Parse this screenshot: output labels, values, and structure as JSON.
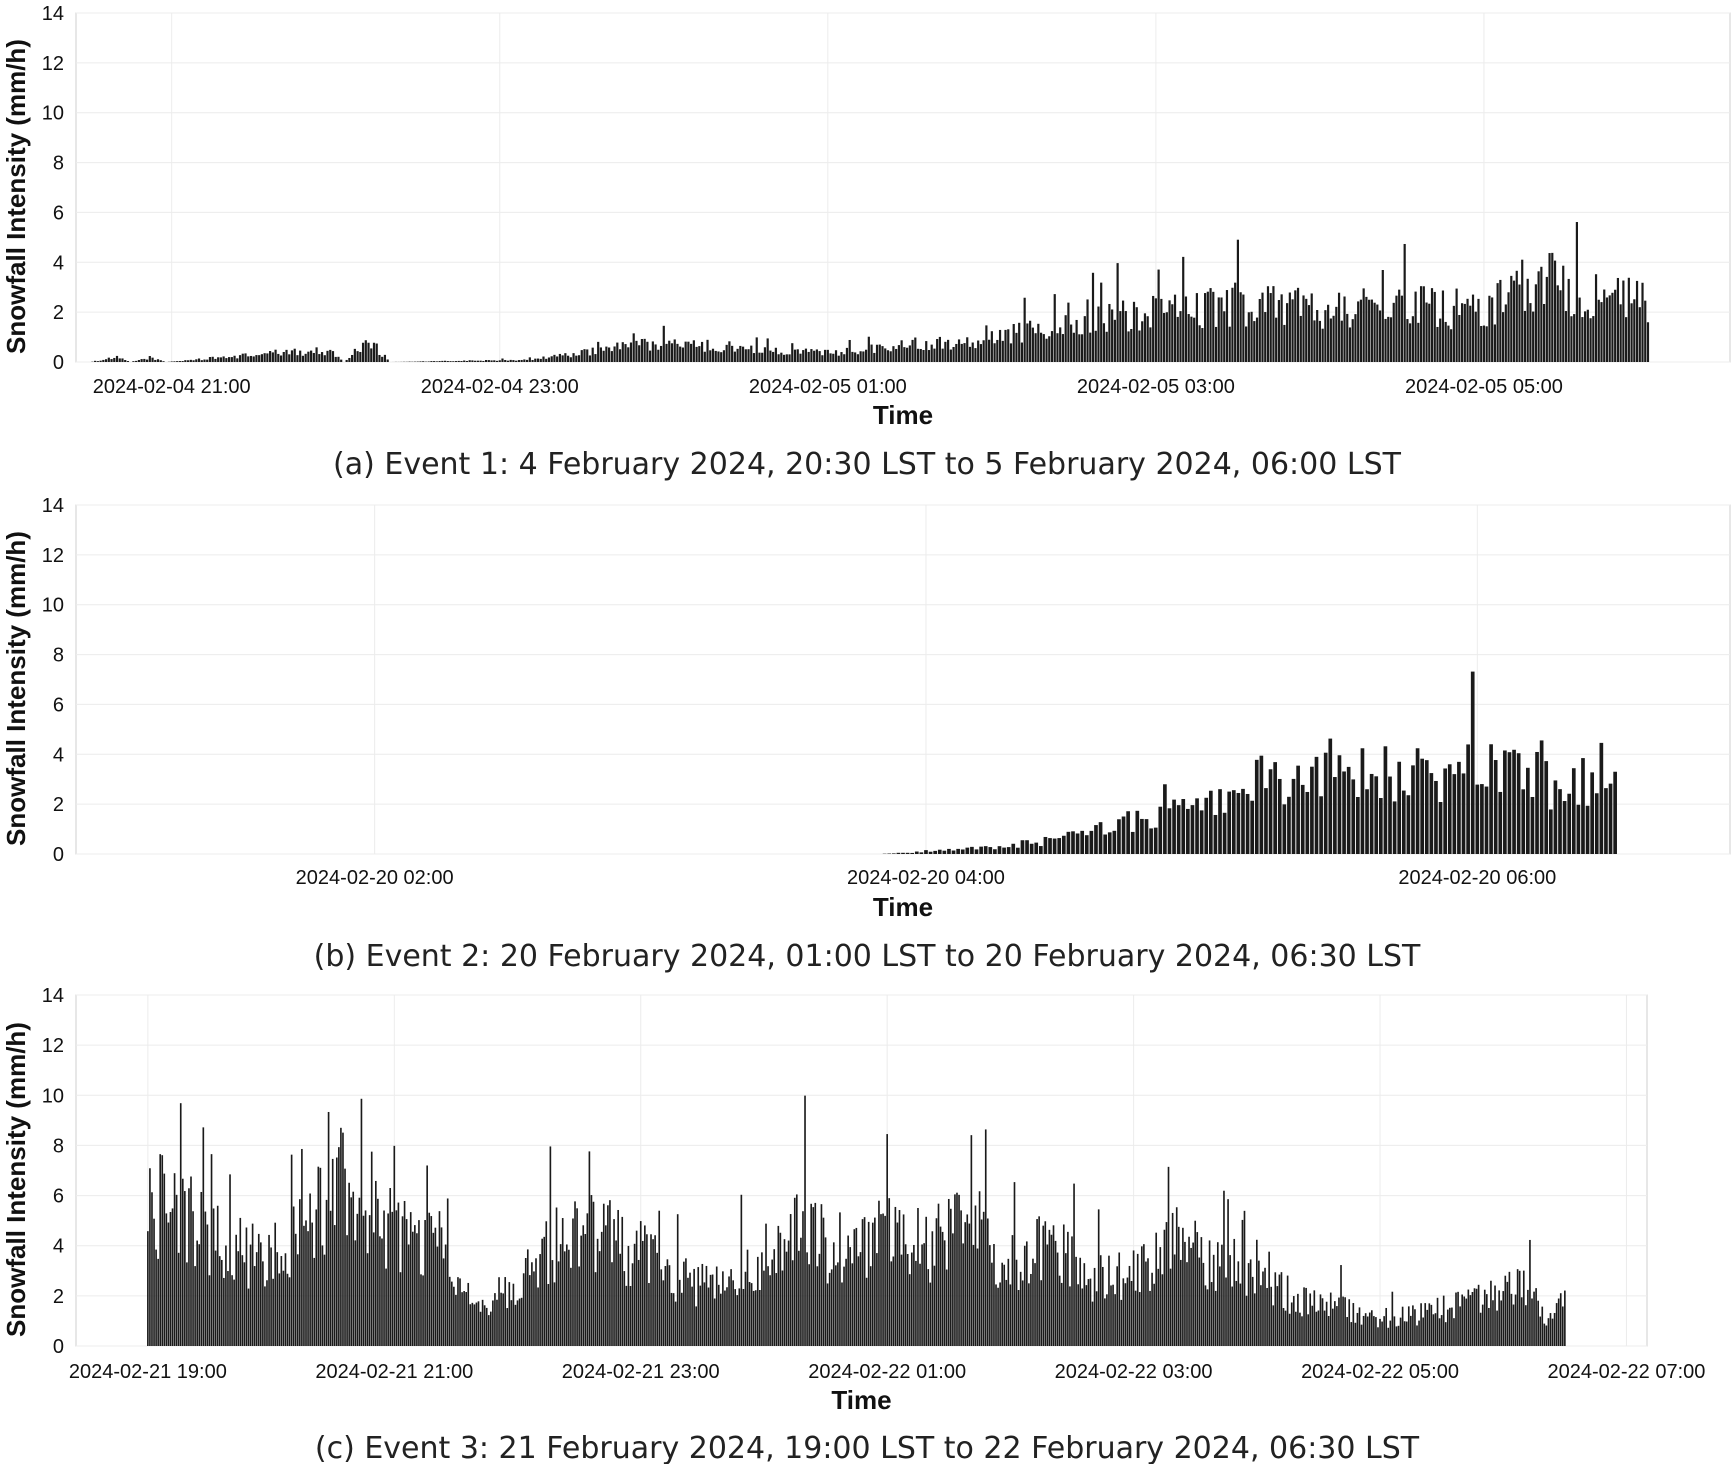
{
  "chart_data": [
    {
      "type": "bar",
      "caption": "(a) Event 1: 4 February 2024, 20:30 LST to 5 February 2024, 06:00 LST",
      "xlabel": "Time",
      "ylabel": "Snowfall Intensity (mm/h)",
      "ylim": [
        0,
        14
      ],
      "yticks": [
        0,
        2,
        4,
        6,
        8,
        10,
        12,
        14
      ],
      "xlim": [
        "2024-02-04 20:25",
        "2024-02-05 06:30"
      ],
      "xticks": [
        "2024-02-04 21:00",
        "2024-02-04 23:00",
        "2024-02-05 01:00",
        "2024-02-05 03:00",
        "2024-02-05 05:00"
      ],
      "grid": true,
      "start": "2024-02-04 20:30",
      "end": "2024-02-05 06:00",
      "bar_color": "#1a1a1a",
      "intensity_keyframes": [
        {
          "t": "2024-02-04 20:30",
          "v": 0.0
        },
        {
          "t": "2024-02-04 20:40",
          "v": 0.2
        },
        {
          "t": "2024-02-04 20:45",
          "v": 0.0
        },
        {
          "t": "2024-02-04 20:52",
          "v": 0.2
        },
        {
          "t": "2024-02-04 20:58",
          "v": 0.0
        },
        {
          "t": "2024-02-04 21:38",
          "v": 0.4
        },
        {
          "t": "2024-02-04 21:58",
          "v": 0.5
        },
        {
          "t": "2024-02-04 22:03",
          "v": 0.0
        },
        {
          "t": "2024-02-04 22:12",
          "v": 1.0
        },
        {
          "t": "2024-02-04 22:20",
          "v": 0.0
        },
        {
          "t": "2024-02-04 23:10",
          "v": 0.1
        },
        {
          "t": "2024-02-04 23:30",
          "v": 0.4
        },
        {
          "t": "2024-02-04 23:50",
          "v": 0.8
        },
        {
          "t": "2024-02-05 00:20",
          "v": 0.7
        },
        {
          "t": "2024-02-05 01:00",
          "v": 0.4
        },
        {
          "t": "2024-02-05 01:30",
          "v": 0.8
        },
        {
          "t": "2024-02-05 02:00",
          "v": 1.0
        },
        {
          "t": "2024-02-05 02:30",
          "v": 2.0
        },
        {
          "t": "2024-02-05 03:00",
          "v": 2.2
        },
        {
          "t": "2024-02-05 03:30",
          "v": 2.6
        },
        {
          "t": "2024-02-05 04:00",
          "v": 2.4
        },
        {
          "t": "2024-02-05 04:30",
          "v": 2.5
        },
        {
          "t": "2024-02-05 05:00",
          "v": 2.3
        },
        {
          "t": "2024-02-05 05:20",
          "v": 3.8
        },
        {
          "t": "2024-02-05 05:40",
          "v": 3.0
        },
        {
          "t": "2024-02-05 06:00",
          "v": 2.6
        }
      ]
    },
    {
      "type": "bar",
      "caption": "(b) Event 2: 20 February 2024, 01:00 LST to 20 February 2024, 06:30 LST",
      "xlabel": "Time",
      "ylabel": "Snowfall Intensity (mm/h)",
      "ylim": [
        0,
        14
      ],
      "yticks": [
        0,
        2,
        4,
        6,
        8,
        10,
        12,
        14
      ],
      "xlim": [
        "2024-02-20 00:55",
        "2024-02-20 06:55"
      ],
      "xticks": [
        "2024-02-20 02:00",
        "2024-02-20 04:00",
        "2024-02-20 06:00"
      ],
      "grid": true,
      "start": "2024-02-20 01:00",
      "end": "2024-02-20 06:30",
      "bar_color": "#1a1a1a",
      "intensity_keyframes": [
        {
          "t": "2024-02-20 01:00",
          "v": 0.0
        },
        {
          "t": "2024-02-20 03:50",
          "v": 0.0
        },
        {
          "t": "2024-02-20 04:00",
          "v": 0.1
        },
        {
          "t": "2024-02-20 04:15",
          "v": 0.3
        },
        {
          "t": "2024-02-20 04:30",
          "v": 0.7
        },
        {
          "t": "2024-02-20 04:45",
          "v": 1.5
        },
        {
          "t": "2024-02-20 05:00",
          "v": 2.0
        },
        {
          "t": "2024-02-20 05:15",
          "v": 3.5
        },
        {
          "t": "2024-02-20 05:30",
          "v": 3.8
        },
        {
          "t": "2024-02-20 05:45",
          "v": 3.6
        },
        {
          "t": "2024-02-20 06:00",
          "v": 3.9
        },
        {
          "t": "2024-02-20 06:15",
          "v": 3.2
        },
        {
          "t": "2024-02-20 06:30",
          "v": 3.0
        }
      ]
    },
    {
      "type": "bar",
      "caption": "(c) Event 3: 21 February 2024, 19:00 LST to 22 February 2024, 06:30 LST",
      "xlabel": "Time",
      "ylabel": "Snowfall Intensity (mm/h)",
      "ylim": [
        0,
        14
      ],
      "yticks": [
        0,
        2,
        4,
        6,
        8,
        10,
        12,
        14
      ],
      "xlim": [
        "2024-02-21 18:25",
        "2024-02-22 07:10"
      ],
      "xticks": [
        "2024-02-21 19:00",
        "2024-02-21 21:00",
        "2024-02-21 23:00",
        "2024-02-22 01:00",
        "2024-02-22 03:00",
        "2024-02-22 05:00",
        "2024-02-22 07:00"
      ],
      "grid": true,
      "start": "2024-02-21 19:00",
      "end": "2024-02-22 06:30",
      "bar_color": "#1a1a1a",
      "intensity_keyframes": [
        {
          "t": "2024-02-21 19:00",
          "v": 6.5
        },
        {
          "t": "2024-02-21 19:20",
          "v": 5.5
        },
        {
          "t": "2024-02-21 19:40",
          "v": 4.2
        },
        {
          "t": "2024-02-21 20:00",
          "v": 4.0
        },
        {
          "t": "2024-02-21 20:20",
          "v": 6.0
        },
        {
          "t": "2024-02-21 20:40",
          "v": 7.5
        },
        {
          "t": "2024-02-21 21:00",
          "v": 4.8
        },
        {
          "t": "2024-02-21 21:20",
          "v": 5.0
        },
        {
          "t": "2024-02-21 21:40",
          "v": 1.5
        },
        {
          "t": "2024-02-21 22:00",
          "v": 3.0
        },
        {
          "t": "2024-02-21 22:20",
          "v": 4.5
        },
        {
          "t": "2024-02-21 22:40",
          "v": 5.0
        },
        {
          "t": "2024-02-21 23:00",
          "v": 4.0
        },
        {
          "t": "2024-02-21 23:20",
          "v": 3.0
        },
        {
          "t": "2024-02-21 23:40",
          "v": 2.5
        },
        {
          "t": "2024-02-22 00:00",
          "v": 4.0
        },
        {
          "t": "2024-02-22 00:20",
          "v": 5.5
        },
        {
          "t": "2024-02-22 00:40",
          "v": 3.5
        },
        {
          "t": "2024-02-22 01:00",
          "v": 5.0
        },
        {
          "t": "2024-02-22 01:20",
          "v": 4.5
        },
        {
          "t": "2024-02-22 01:40",
          "v": 5.5
        },
        {
          "t": "2024-02-22 02:00",
          "v": 3.5
        },
        {
          "t": "2024-02-22 02:20",
          "v": 4.5
        },
        {
          "t": "2024-02-22 02:40",
          "v": 3.0
        },
        {
          "t": "2024-02-22 03:00",
          "v": 3.2
        },
        {
          "t": "2024-02-22 03:20",
          "v": 5.0
        },
        {
          "t": "2024-02-22 03:40",
          "v": 3.5
        },
        {
          "t": "2024-02-22 04:00",
          "v": 3.5
        },
        {
          "t": "2024-02-22 04:20",
          "v": 2.0
        },
        {
          "t": "2024-02-22 04:40",
          "v": 1.8
        },
        {
          "t": "2024-02-22 05:00",
          "v": 1.2
        },
        {
          "t": "2024-02-22 05:20",
          "v": 1.5
        },
        {
          "t": "2024-02-22 05:40",
          "v": 1.8
        },
        {
          "t": "2024-02-22 06:00",
          "v": 2.5
        },
        {
          "t": "2024-02-22 06:10",
          "v": 3.0
        },
        {
          "t": "2024-02-22 06:20",
          "v": 1.2
        },
        {
          "t": "2024-02-22 06:30",
          "v": 2.0
        }
      ]
    }
  ]
}
